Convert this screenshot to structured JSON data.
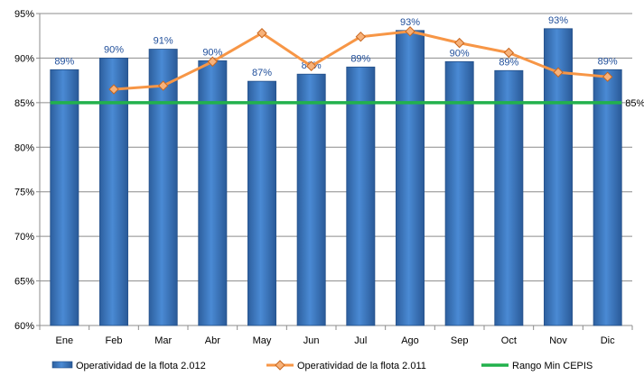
{
  "chart_data": {
    "type": "bar",
    "categories": [
      "Ene",
      "Feb",
      "Mar",
      "Abr",
      "May",
      "Jun",
      "Jul",
      "Ago",
      "Sep",
      "Oct",
      "Nov",
      "Dic"
    ],
    "series": [
      {
        "name": "Operatividad de la flota 2.012",
        "type": "bar",
        "values": [
          88.7,
          90.0,
          91.0,
          89.7,
          87.4,
          88.2,
          89.0,
          93.1,
          89.6,
          88.6,
          93.3,
          88.7
        ],
        "labels": [
          "89%",
          "90%",
          "91%",
          "90%",
          "87%",
          "88%",
          "89%",
          "93%",
          "90%",
          "89%",
          "93%",
          "89%"
        ],
        "color": "#3f7ec8"
      },
      {
        "name": "Operatividad de la flota 2.011",
        "type": "line",
        "values": [
          null,
          86.5,
          86.9,
          89.6,
          92.8,
          89.1,
          92.4,
          93.0,
          91.7,
          90.6,
          88.4,
          87.9
        ],
        "color": "#f79646"
      },
      {
        "name": "Rango Min CEPIS",
        "type": "line",
        "values": [
          85,
          85,
          85,
          85,
          85,
          85,
          85,
          85,
          85,
          85,
          85,
          85
        ],
        "end_label": "85%",
        "color": "#22b14c"
      }
    ],
    "y_ticks": [
      "60%",
      "65%",
      "70%",
      "75%",
      "80%",
      "85%",
      "90%",
      "95%"
    ],
    "ylim": [
      60,
      95
    ],
    "grid": true,
    "legend": "bottom"
  }
}
